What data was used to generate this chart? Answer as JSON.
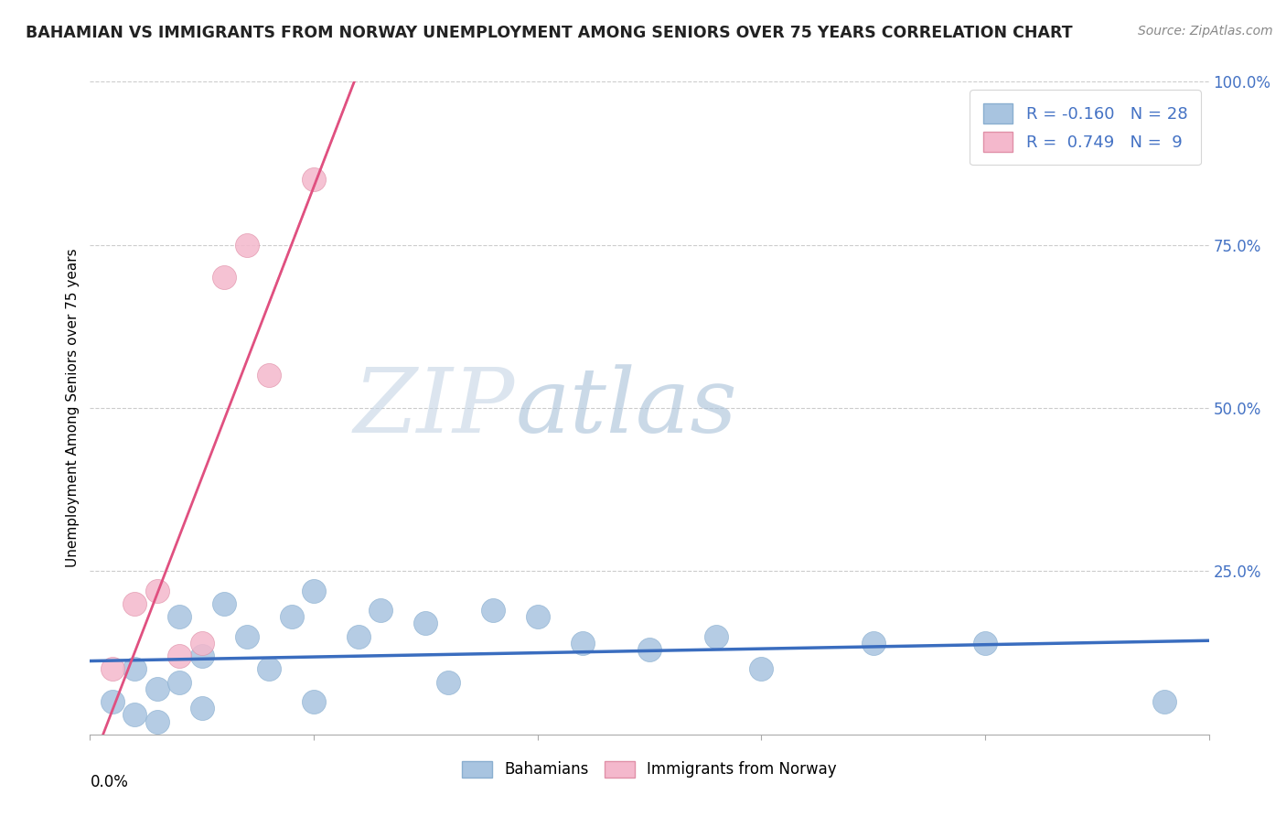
{
  "title": "BAHAMIAN VS IMMIGRANTS FROM NORWAY UNEMPLOYMENT AMONG SENIORS OVER 75 YEARS CORRELATION CHART",
  "source": "Source: ZipAtlas.com",
  "ylabel": "Unemployment Among Seniors over 75 years",
  "x_range": [
    0.0,
    0.05
  ],
  "y_range": [
    0.0,
    1.0
  ],
  "legend_blue_r": "-0.160",
  "legend_blue_n": "28",
  "legend_pink_r": "0.749",
  "legend_pink_n": "9",
  "blue_scatter_x": [
    0.001,
    0.002,
    0.002,
    0.003,
    0.003,
    0.004,
    0.004,
    0.005,
    0.005,
    0.006,
    0.007,
    0.008,
    0.009,
    0.01,
    0.01,
    0.012,
    0.013,
    0.015,
    0.016,
    0.018,
    0.02,
    0.022,
    0.025,
    0.028,
    0.03,
    0.035,
    0.04,
    0.048
  ],
  "blue_scatter_y": [
    0.05,
    0.1,
    0.03,
    0.07,
    0.02,
    0.18,
    0.08,
    0.12,
    0.04,
    0.2,
    0.15,
    0.1,
    0.18,
    0.22,
    0.05,
    0.15,
    0.19,
    0.17,
    0.08,
    0.19,
    0.18,
    0.14,
    0.13,
    0.15,
    0.1,
    0.14,
    0.14,
    0.05
  ],
  "pink_scatter_x": [
    0.001,
    0.002,
    0.003,
    0.004,
    0.005,
    0.006,
    0.007,
    0.008,
    0.01
  ],
  "pink_scatter_y": [
    0.1,
    0.2,
    0.22,
    0.12,
    0.14,
    0.7,
    0.75,
    0.55,
    0.85
  ],
  "blue_line_color": "#3A6DBF",
  "pink_line_color": "#E05080",
  "blue_scatter_color": "#A8C4E0",
  "pink_scatter_color": "#F4B8CC",
  "grid_color": "#CCCCCC",
  "watermark_zip_color": "#C8D8E8",
  "watermark_atlas_color": "#A0B8D0",
  "background_color": "#ffffff",
  "title_color": "#222222",
  "source_color": "#888888",
  "right_axis_color": "#4472C4"
}
